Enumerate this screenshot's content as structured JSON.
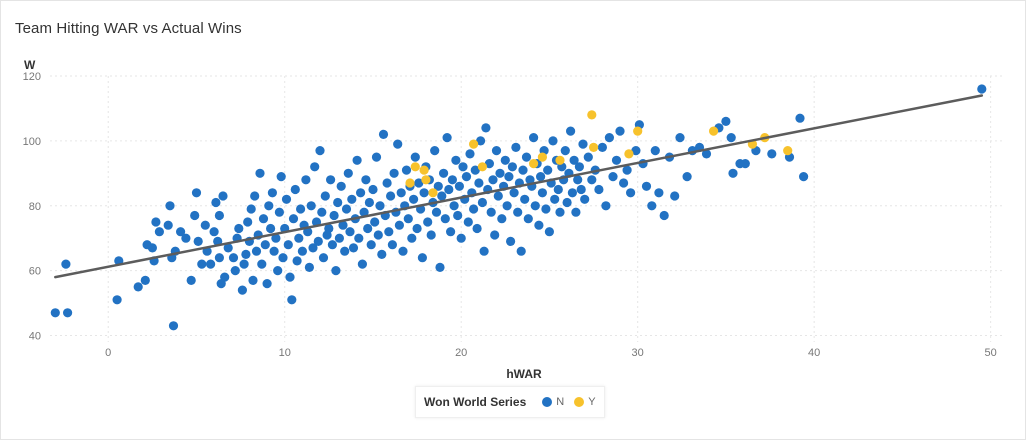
{
  "chart_data": {
    "type": "scatter",
    "title": "Team Hitting WAR vs Actual Wins",
    "xlabel": "hWAR",
    "ylabel": "W",
    "xlim": [
      -3.3,
      50.7
    ],
    "ylim": [
      38,
      120
    ],
    "x_ticks": [
      0,
      10,
      20,
      30,
      40,
      50
    ],
    "y_ticks": [
      40,
      60,
      80,
      100,
      120
    ],
    "grid": true,
    "legend": {
      "title": "Won World Series",
      "placement": "bottom-center",
      "entries": [
        {
          "label": "N",
          "color": "#2272c3"
        },
        {
          "label": "Y",
          "color": "#f7c22c"
        }
      ]
    },
    "trendline": {
      "x": [
        -3,
        49.5
      ],
      "y": [
        58,
        114
      ],
      "color": "#5c5c5c"
    },
    "series": [
      {
        "name": "N",
        "color": "#2272c3",
        "points": [
          [
            -3,
            47
          ],
          [
            -2.3,
            47
          ],
          [
            -2.4,
            62
          ],
          [
            0.5,
            51
          ],
          [
            0.6,
            63
          ],
          [
            1.7,
            55
          ],
          [
            2.1,
            57
          ],
          [
            2.2,
            68
          ],
          [
            2.5,
            67
          ],
          [
            2.6,
            63
          ],
          [
            2.7,
            75
          ],
          [
            2.9,
            72
          ],
          [
            3.5,
            80
          ],
          [
            3.4,
            74
          ],
          [
            3.6,
            64
          ],
          [
            3.7,
            43
          ],
          [
            3.8,
            66
          ],
          [
            4.1,
            72
          ],
          [
            4.4,
            70
          ],
          [
            4.7,
            57
          ],
          [
            4.9,
            77
          ],
          [
            5.0,
            84
          ],
          [
            5.1,
            69
          ],
          [
            5.3,
            62
          ],
          [
            5.5,
            74
          ],
          [
            5.6,
            66
          ],
          [
            5.8,
            62
          ],
          [
            6.0,
            72
          ],
          [
            6.1,
            81
          ],
          [
            6.2,
            69
          ],
          [
            6.3,
            77
          ],
          [
            6.3,
            64
          ],
          [
            6.4,
            56
          ],
          [
            6.5,
            83
          ],
          [
            6.6,
            58
          ],
          [
            6.8,
            67
          ],
          [
            7.1,
            64
          ],
          [
            7.2,
            60
          ],
          [
            7.3,
            70
          ],
          [
            7.4,
            73
          ],
          [
            7.6,
            54
          ],
          [
            7.7,
            62
          ],
          [
            7.8,
            65
          ],
          [
            7.9,
            75
          ],
          [
            8.0,
            69
          ],
          [
            8.1,
            79
          ],
          [
            8.2,
            57
          ],
          [
            8.3,
            83
          ],
          [
            8.4,
            66
          ],
          [
            8.5,
            71
          ],
          [
            8.6,
            90
          ],
          [
            8.7,
            62
          ],
          [
            8.8,
            76
          ],
          [
            8.9,
            68
          ],
          [
            9.0,
            56
          ],
          [
            9.1,
            80
          ],
          [
            9.2,
            73
          ],
          [
            9.3,
            84
          ],
          [
            9.4,
            66
          ],
          [
            9.5,
            70
          ],
          [
            9.6,
            60
          ],
          [
            9.7,
            78
          ],
          [
            9.8,
            89
          ],
          [
            9.9,
            64
          ],
          [
            10.0,
            73
          ],
          [
            10.1,
            82
          ],
          [
            10.2,
            68
          ],
          [
            10.3,
            58
          ],
          [
            10.4,
            51
          ],
          [
            10.5,
            76
          ],
          [
            10.6,
            85
          ],
          [
            10.7,
            63
          ],
          [
            10.8,
            70
          ],
          [
            10.9,
            79
          ],
          [
            11.0,
            66
          ],
          [
            11.1,
            74
          ],
          [
            11.2,
            88
          ],
          [
            11.3,
            72
          ],
          [
            11.4,
            61
          ],
          [
            11.5,
            80
          ],
          [
            11.6,
            67
          ],
          [
            11.7,
            92
          ],
          [
            11.8,
            75
          ],
          [
            11.9,
            69
          ],
          [
            12.0,
            97
          ],
          [
            12.1,
            78
          ],
          [
            12.2,
            64
          ],
          [
            12.3,
            83
          ],
          [
            12.4,
            71
          ],
          [
            12.5,
            73
          ],
          [
            12.6,
            88
          ],
          [
            12.7,
            68
          ],
          [
            12.8,
            77
          ],
          [
            12.9,
            60
          ],
          [
            13.0,
            81
          ],
          [
            13.1,
            70
          ],
          [
            13.2,
            86
          ],
          [
            13.3,
            74
          ],
          [
            13.4,
            66
          ],
          [
            13.5,
            79
          ],
          [
            13.6,
            90
          ],
          [
            13.7,
            72
          ],
          [
            13.8,
            82
          ],
          [
            13.9,
            67
          ],
          [
            14.0,
            76
          ],
          [
            14.1,
            94
          ],
          [
            14.2,
            70
          ],
          [
            14.3,
            84
          ],
          [
            14.4,
            62
          ],
          [
            14.5,
            78
          ],
          [
            14.6,
            88
          ],
          [
            14.7,
            73
          ],
          [
            14.8,
            81
          ],
          [
            14.9,
            68
          ],
          [
            15.0,
            85
          ],
          [
            15.1,
            75
          ],
          [
            15.2,
            95
          ],
          [
            15.3,
            71
          ],
          [
            15.4,
            80
          ],
          [
            15.5,
            65
          ],
          [
            15.6,
            102
          ],
          [
            15.7,
            77
          ],
          [
            15.8,
            87
          ],
          [
            15.9,
            72
          ],
          [
            16.0,
            83
          ],
          [
            16.1,
            68
          ],
          [
            16.2,
            90
          ],
          [
            16.3,
            78
          ],
          [
            16.4,
            99
          ],
          [
            16.5,
            74
          ],
          [
            16.6,
            84
          ],
          [
            16.7,
            66
          ],
          [
            16.8,
            80
          ],
          [
            16.9,
            91
          ],
          [
            17.0,
            76
          ],
          [
            17.1,
            86
          ],
          [
            17.2,
            70
          ],
          [
            17.3,
            82
          ],
          [
            17.4,
            95
          ],
          [
            17.5,
            73
          ],
          [
            17.6,
            87
          ],
          [
            17.7,
            79
          ],
          [
            17.8,
            64
          ],
          [
            17.9,
            84
          ],
          [
            18.0,
            92
          ],
          [
            18.1,
            75
          ],
          [
            18.2,
            88
          ],
          [
            18.3,
            71
          ],
          [
            18.4,
            81
          ],
          [
            18.5,
            97
          ],
          [
            18.6,
            78
          ],
          [
            18.7,
            86
          ],
          [
            18.8,
            61
          ],
          [
            18.9,
            83
          ],
          [
            19.0,
            90
          ],
          [
            19.1,
            76
          ],
          [
            19.2,
            101
          ],
          [
            19.3,
            85
          ],
          [
            19.4,
            72
          ],
          [
            19.5,
            88
          ],
          [
            19.6,
            80
          ],
          [
            19.7,
            94
          ],
          [
            19.8,
            77
          ],
          [
            19.9,
            86
          ],
          [
            20.0,
            70
          ],
          [
            20.1,
            92
          ],
          [
            20.2,
            82
          ],
          [
            20.3,
            89
          ],
          [
            20.4,
            75
          ],
          [
            20.5,
            96
          ],
          [
            20.6,
            84
          ],
          [
            20.7,
            79
          ],
          [
            20.8,
            91
          ],
          [
            20.9,
            73
          ],
          [
            21.0,
            87
          ],
          [
            21.1,
            100
          ],
          [
            21.2,
            81
          ],
          [
            21.3,
            66
          ],
          [
            21.4,
            104
          ],
          [
            21.5,
            85
          ],
          [
            21.6,
            93
          ],
          [
            21.7,
            78
          ],
          [
            21.8,
            88
          ],
          [
            21.9,
            71
          ],
          [
            22.0,
            97
          ],
          [
            22.1,
            83
          ],
          [
            22.2,
            90
          ],
          [
            22.3,
            76
          ],
          [
            22.4,
            86
          ],
          [
            22.5,
            94
          ],
          [
            22.6,
            80
          ],
          [
            22.7,
            89
          ],
          [
            22.8,
            69
          ],
          [
            22.9,
            92
          ],
          [
            23.0,
            84
          ],
          [
            23.1,
            98
          ],
          [
            23.2,
            78
          ],
          [
            23.3,
            87
          ],
          [
            23.4,
            66
          ],
          [
            23.5,
            91
          ],
          [
            23.6,
            82
          ],
          [
            23.7,
            95
          ],
          [
            23.8,
            76
          ],
          [
            23.9,
            88
          ],
          [
            24.0,
            86
          ],
          [
            24.1,
            101
          ],
          [
            24.2,
            80
          ],
          [
            24.3,
            93
          ],
          [
            24.4,
            74
          ],
          [
            24.5,
            89
          ],
          [
            24.6,
            84
          ],
          [
            24.7,
            97
          ],
          [
            24.8,
            79
          ],
          [
            24.9,
            91
          ],
          [
            25.0,
            72
          ],
          [
            25.1,
            87
          ],
          [
            25.2,
            100
          ],
          [
            25.3,
            82
          ],
          [
            25.4,
            94
          ],
          [
            25.5,
            85
          ],
          [
            25.6,
            78
          ],
          [
            25.7,
            92
          ],
          [
            25.8,
            88
          ],
          [
            25.9,
            97
          ],
          [
            26.0,
            81
          ],
          [
            26.1,
            90
          ],
          [
            26.2,
            103
          ],
          [
            26.3,
            84
          ],
          [
            26.4,
            94
          ],
          [
            26.5,
            78
          ],
          [
            26.6,
            88
          ],
          [
            26.7,
            92
          ],
          [
            26.8,
            85
          ],
          [
            26.9,
            99
          ],
          [
            27.0,
            82
          ],
          [
            27.2,
            95
          ],
          [
            27.4,
            88
          ],
          [
            27.6,
            91
          ],
          [
            27.8,
            85
          ],
          [
            28.0,
            98
          ],
          [
            28.2,
            80
          ],
          [
            28.4,
            101
          ],
          [
            28.6,
            89
          ],
          [
            28.8,
            94
          ],
          [
            29.0,
            103
          ],
          [
            29.2,
            87
          ],
          [
            29.4,
            91
          ],
          [
            29.6,
            84
          ],
          [
            29.9,
            97
          ],
          [
            30.1,
            105
          ],
          [
            30.3,
            93
          ],
          [
            30.5,
            86
          ],
          [
            30.8,
            80
          ],
          [
            31.0,
            97
          ],
          [
            31.2,
            84
          ],
          [
            31.5,
            77
          ],
          [
            31.8,
            95
          ],
          [
            32.1,
            83
          ],
          [
            32.4,
            101
          ],
          [
            32.8,
            89
          ],
          [
            33.1,
            97
          ],
          [
            33.5,
            98
          ],
          [
            33.9,
            96
          ],
          [
            34.6,
            104
          ],
          [
            35.0,
            106
          ],
          [
            35.3,
            101
          ],
          [
            35.4,
            90
          ],
          [
            35.8,
            93
          ],
          [
            36.1,
            93
          ],
          [
            36.7,
            97
          ],
          [
            37.6,
            96
          ],
          [
            38.6,
            95
          ],
          [
            39.2,
            107
          ],
          [
            39.4,
            89
          ],
          [
            49.5,
            116
          ]
        ]
      },
      {
        "name": "Y",
        "color": "#f7c22c",
        "points": [
          [
            17.1,
            87
          ],
          [
            17.4,
            92
          ],
          [
            17.9,
            91
          ],
          [
            18.0,
            88
          ],
          [
            18.4,
            84
          ],
          [
            20.7,
            99
          ],
          [
            21.2,
            92
          ],
          [
            24.1,
            93
          ],
          [
            24.6,
            95
          ],
          [
            25.6,
            94
          ],
          [
            27.4,
            108
          ],
          [
            27.5,
            98
          ],
          [
            29.5,
            96
          ],
          [
            30.0,
            103
          ],
          [
            34.3,
            103
          ],
          [
            36.5,
            99
          ],
          [
            37.2,
            101
          ],
          [
            38.5,
            97
          ]
        ]
      }
    ]
  }
}
